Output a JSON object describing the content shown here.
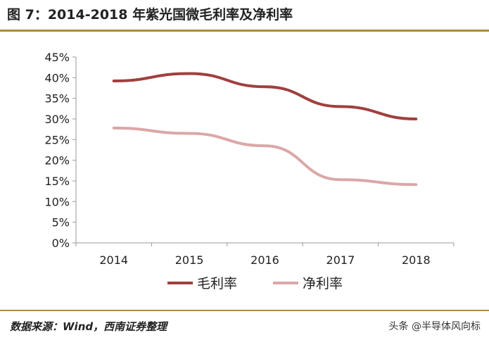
{
  "header": {
    "title": "图 7：2014-2018 年紫光国微毛利率及净利率"
  },
  "chart_data": {
    "type": "line",
    "title": "",
    "xlabel": "",
    "ylabel": "",
    "categories": [
      "2014",
      "2015",
      "2016",
      "2017",
      "2018"
    ],
    "y_ticks": [
      "45%",
      "40%",
      "35%",
      "30%",
      "25%",
      "20%",
      "15%",
      "10%",
      "5%",
      "0%"
    ],
    "ylim": [
      0,
      45
    ],
    "grid": false,
    "legend_position": "bottom-center",
    "series": [
      {
        "name": "毛利率",
        "color": "#a0403e",
        "values": [
          39.2,
          41.0,
          37.8,
          33.0,
          30.0
        ]
      },
      {
        "name": "净利率",
        "color": "#dba7a7",
        "values": [
          27.8,
          26.5,
          23.5,
          15.3,
          14.1
        ]
      }
    ]
  },
  "footer": {
    "source": "数据来源：Wind，西南证券整理",
    "watermark": "头条 @半导体风向标"
  }
}
